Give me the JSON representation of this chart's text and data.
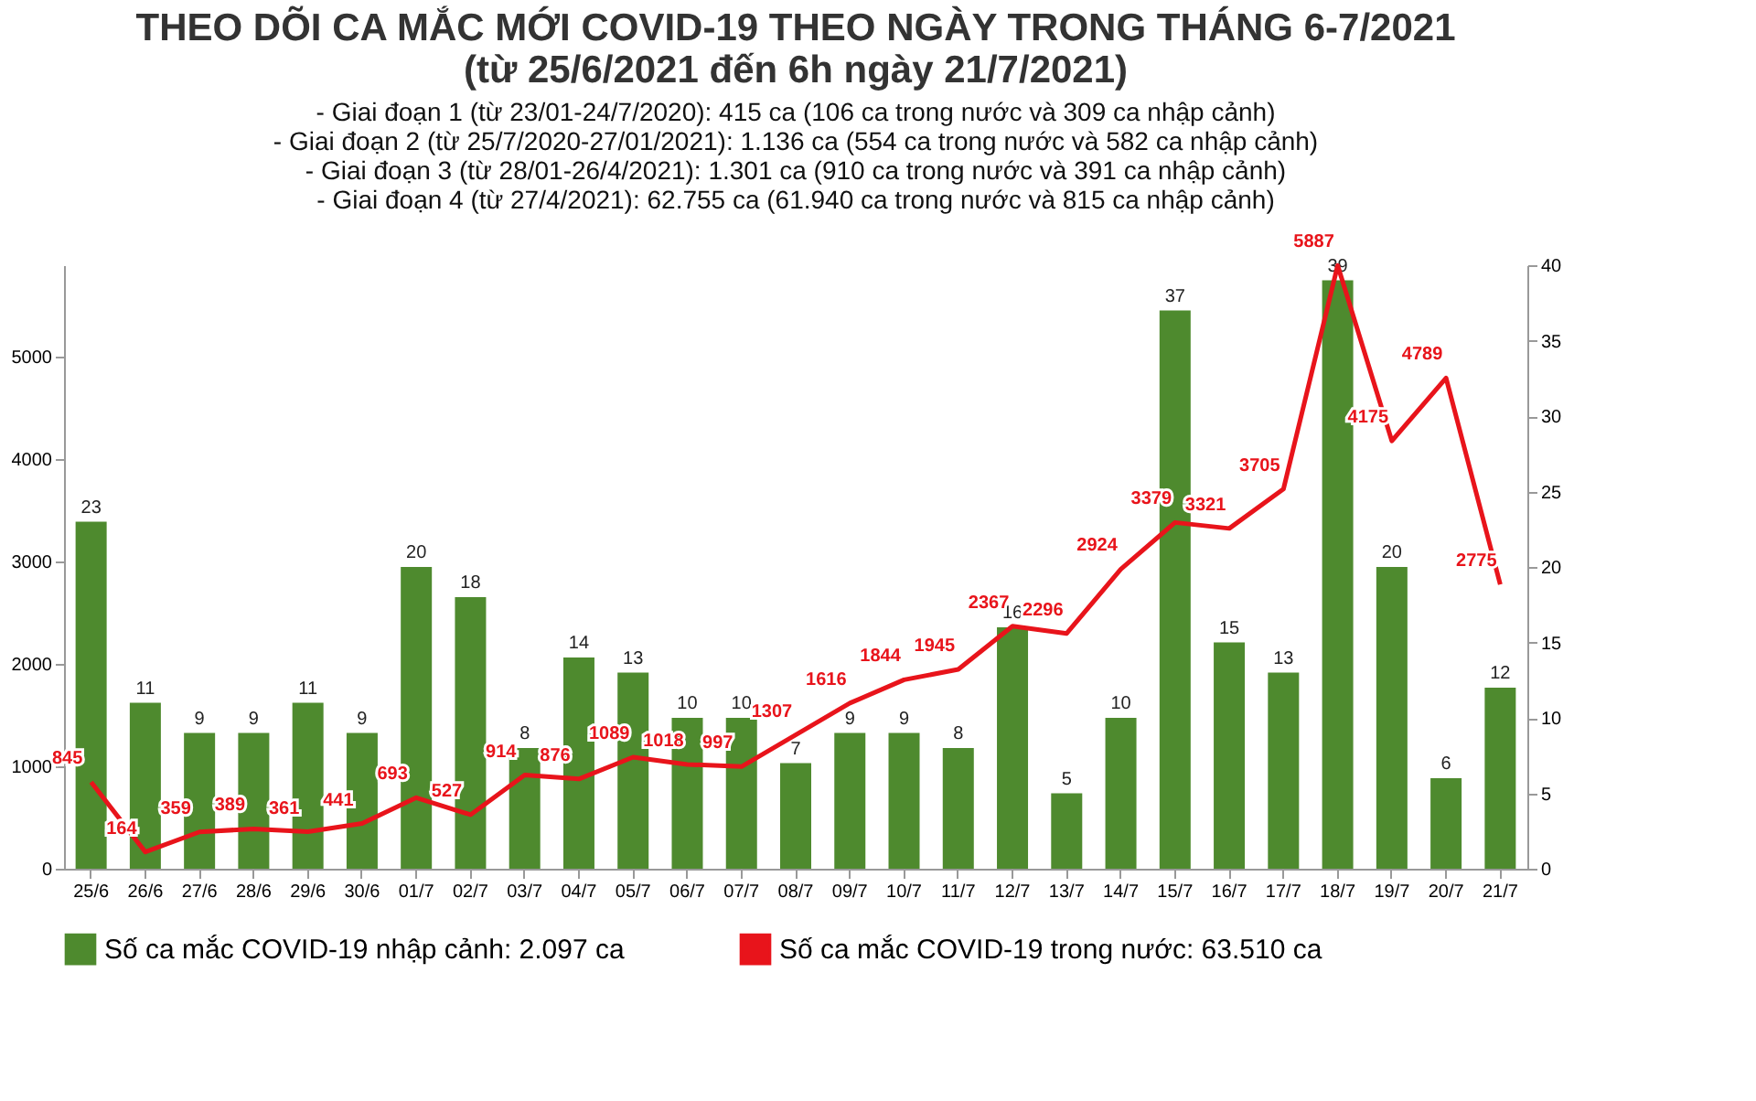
{
  "chart_data": {
    "type": "bar",
    "title": "THEO DÕI CA MẮC MỚI COVID-19 THEO NGÀY TRONG THÁNG 6-7/2021",
    "subtitle": "(từ 25/6/2021 đến 6h ngày 21/7/2021)",
    "annotations": [
      "- Giai đoạn 1 (từ 23/01-24/7/2020): 415 ca (106 ca trong nước và 309 ca nhập cảnh)",
      "- Giai đoạn 2 (từ 25/7/2020-27/01/2021): 1.136 ca (554 ca trong nước và 582 ca nhập cảnh)",
      "- Giai đoạn 3 (từ 28/01-26/4/2021): 1.301 ca (910 ca trong nước và 391 ca nhập cảnh)",
      "- Giai đoạn 4 (từ 27/4/2021): 62.755 ca (61.940 ca trong nước và 815 ca nhập cảnh)"
    ],
    "categories": [
      "25/6",
      "26/6",
      "27/6",
      "28/6",
      "29/6",
      "30/6",
      "01/7",
      "02/7",
      "03/7",
      "04/7",
      "05/7",
      "06/7",
      "07/7",
      "08/7",
      "09/7",
      "10/7",
      "11/7",
      "12/7",
      "13/7",
      "14/7",
      "15/7",
      "16/7",
      "17/7",
      "18/7",
      "19/7",
      "20/7",
      "21/7"
    ],
    "series": [
      {
        "name": "Số ca mắc COVID-19 nhập cảnh: 2.097 ca",
        "axis": "y2",
        "color": "#4e8a2e",
        "values": [
          23,
          11,
          9,
          9,
          11,
          9,
          20,
          18,
          8,
          14,
          13,
          10,
          10,
          7,
          9,
          9,
          8,
          16,
          5,
          10,
          37,
          15,
          13,
          39,
          20,
          6,
          12
        ]
      },
      {
        "name": "Số ca mắc COVID-19 trong nước: 63.510 ca",
        "type": "line",
        "color": "#e8141b",
        "values": [
          845,
          164,
          359,
          389,
          361,
          441,
          693,
          527,
          914,
          876,
          1089,
          1018,
          997,
          1307,
          1616,
          1844,
          1945,
          2367,
          2296,
          2924,
          3379,
          3321,
          3705,
          5887,
          4175,
          4789,
          2775
        ]
      }
    ],
    "ylim": [
      0,
      5890
    ],
    "yticks": [
      0,
      1000,
      2000,
      3000,
      4000,
      5000
    ],
    "y2lim": [
      0,
      40
    ],
    "y2ticks": [
      0,
      5,
      10,
      15,
      20,
      25,
      30,
      35,
      40
    ],
    "data_labels": true,
    "grid": false,
    "legend": "bottom",
    "line_style": "solid",
    "marker": "none"
  }
}
